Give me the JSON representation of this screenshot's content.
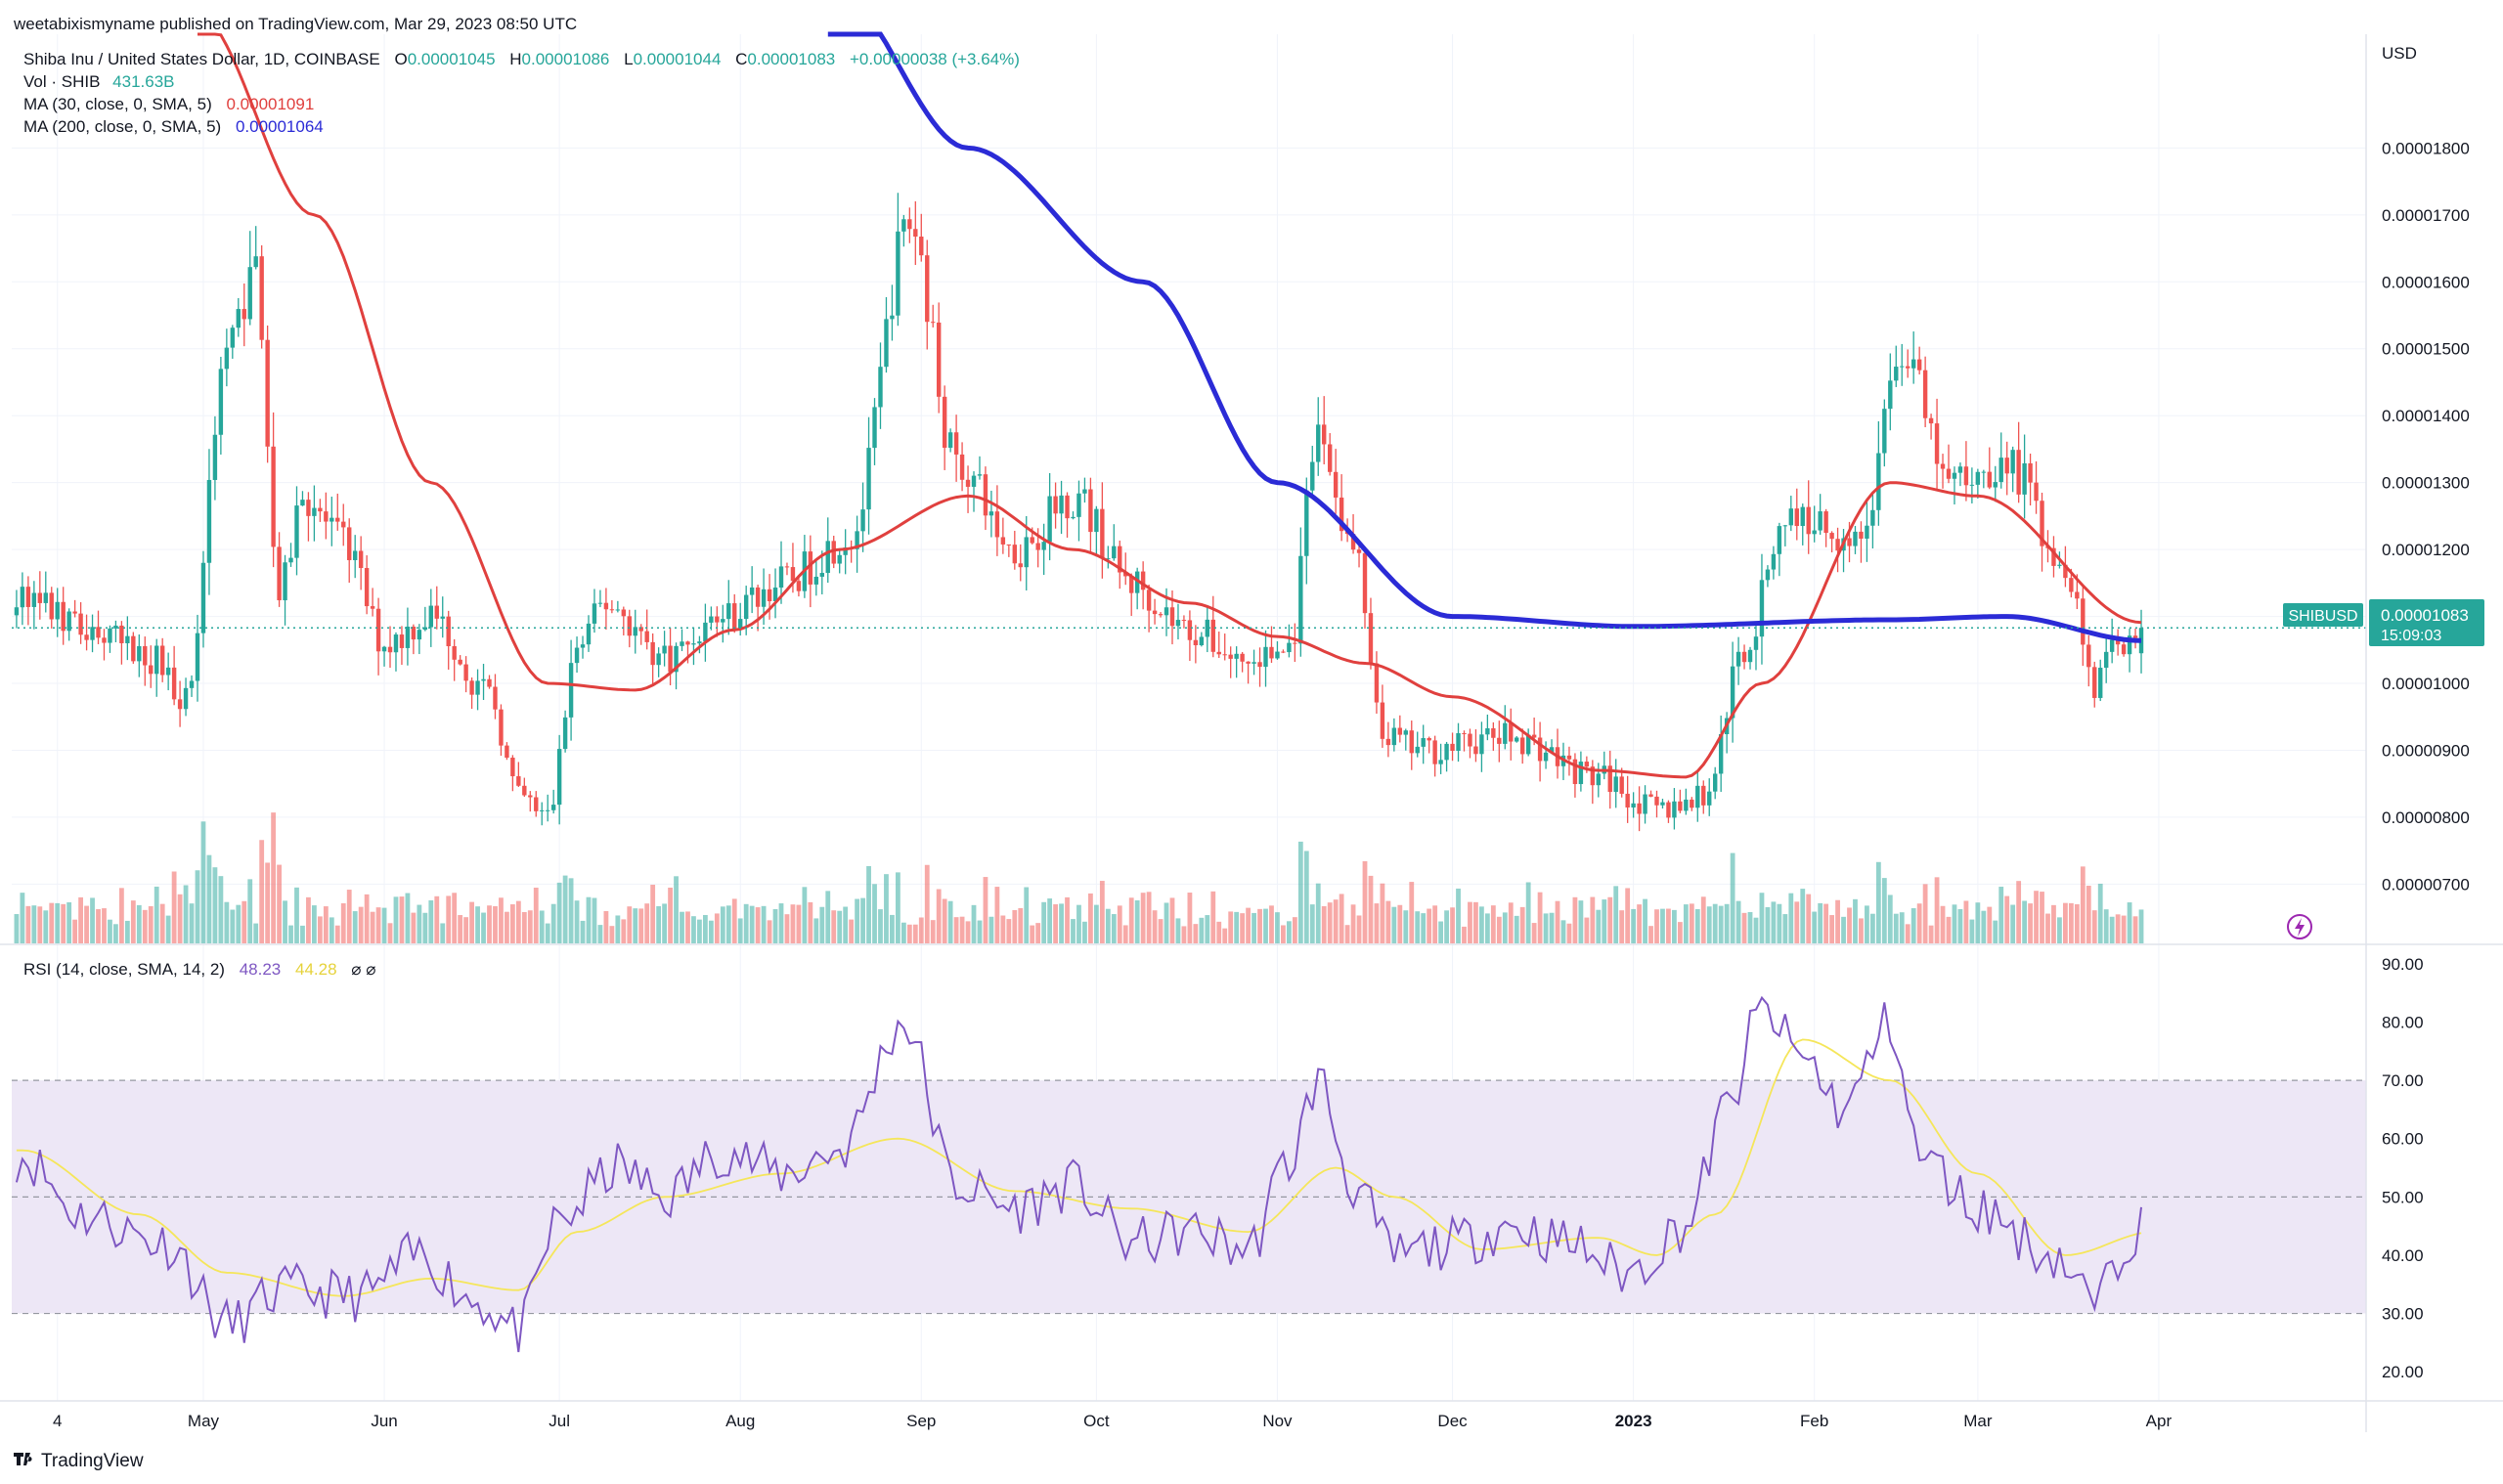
{
  "header": {
    "published": "weetabixismyname published on TradingView.com, Mar 29, 2023 08:50 UTC"
  },
  "legend": {
    "symbol": "Shiba Inu / United States Dollar, 1D, COINBASE",
    "o_label": "O",
    "o_value": "0.00001045",
    "h_label": "H",
    "h_value": "0.00001086",
    "l_label": "L",
    "l_value": "0.00001044",
    "c_label": "C",
    "c_value": "0.00001083",
    "change": "+0.00000038 (+3.64%)",
    "vol_label": "Vol · SHIB",
    "vol_value": "431.63B",
    "ma30_label": "MA (30, close, 0, SMA, 5)",
    "ma30_value": "0.00001091",
    "ma200_label": "MA (200, close, 0, SMA, 5)",
    "ma200_value": "0.00001064",
    "rsi_label": "RSI (14, close, SMA, 14, 2)",
    "rsi_value": "48.23",
    "rsi_ma_value": "44.28",
    "rsi_extra": "⌀ ⌀"
  },
  "price_badge": {
    "symbol": "SHIBUSD",
    "price": "0.00001083",
    "countdown": "15:09:03"
  },
  "footer": {
    "brand": "TradingView"
  },
  "colors": {
    "up": "#26a69a",
    "down": "#ef5350",
    "ma30": "#e0403e",
    "ma200": "#2b2bd6",
    "rsi": "#7e57c2",
    "rsi_ma": "#f5e65a",
    "rsi_band": "#ede7f6",
    "grid": "#f0f3fa"
  },
  "chart_data": {
    "type": "candlestick",
    "price_axis": {
      "unit": "USD",
      "ticks": [
        "0.00001800",
        "0.00001700",
        "0.00001600",
        "0.00001500",
        "0.00001400",
        "0.00001300",
        "0.00001200",
        "0.00001100",
        "0.00001000",
        "0.00000900",
        "0.00000800",
        "0.00000700"
      ],
      "range": [
        6.1e-06,
        1.97e-05
      ]
    },
    "time_axis": {
      "ticks": [
        "4",
        "May",
        "Jun",
        "Jul",
        "Aug",
        "Sep",
        "Oct",
        "Nov",
        "Dec",
        "2023",
        "Feb",
        "Mar",
        "Apr"
      ],
      "tick_days": [
        -24,
        1,
        32,
        62,
        93,
        124,
        154,
        185,
        215,
        246,
        277,
        305,
        336
      ]
    },
    "rsi_axis": {
      "ticks": [
        "90.00",
        "80.00",
        "70.00",
        "60.00",
        "50.00",
        "40.00",
        "30.00",
        "20.00"
      ],
      "range": [
        15,
        93
      ],
      "band": [
        30,
        70
      ],
      "mid": 50
    },
    "ma200_anchors": [
      [
        108,
        2.05e-05
      ],
      [
        132,
        1.8e-05
      ],
      [
        162,
        1.6e-05
      ],
      [
        185,
        1.3e-05
      ],
      [
        215,
        1.1e-05
      ],
      [
        246,
        1.085e-05
      ],
      [
        290,
        1.095e-05
      ],
      [
        310,
        1.1e-05
      ],
      [
        333,
        1.064e-05
      ]
    ],
    "ma30_anchors": [
      [
        0,
        2e-05
      ],
      [
        20,
        1.7e-05
      ],
      [
        40,
        1.3e-05
      ],
      [
        60,
        1e-05
      ],
      [
        75,
        9.9e-06
      ],
      [
        92,
        1.08e-05
      ],
      [
        110,
        1.2e-05
      ],
      [
        132,
        1.28e-05
      ],
      [
        150,
        1.2e-05
      ],
      [
        170,
        1.12e-05
      ],
      [
        185,
        1.07e-05
      ],
      [
        200,
        1.03e-05
      ],
      [
        215,
        9.8e-06
      ],
      [
        240,
        8.7e-06
      ],
      [
        255,
        8.6e-06
      ],
      [
        268,
        1e-05
      ],
      [
        290,
        1.3e-05
      ],
      [
        305,
        1.28e-05
      ],
      [
        333,
        1.091e-05
      ]
    ],
    "close_anchors": [
      [
        -30,
        1.13e-05
      ],
      [
        -20,
        1.08e-05
      ],
      [
        -8,
        1.04e-05
      ],
      [
        -2,
        9.8e-06
      ],
      [
        5,
        1.5e-05
      ],
      [
        10,
        1.62e-05
      ],
      [
        14,
        1.13e-05
      ],
      [
        18,
        1.28e-05
      ],
      [
        25,
        1.21e-05
      ],
      [
        32,
        1.06e-05
      ],
      [
        40,
        1.1e-05
      ],
      [
        50,
        9.8e-06
      ],
      [
        55,
        8.3e-06
      ],
      [
        60,
        8e-06
      ],
      [
        65,
        1.05e-05
      ],
      [
        70,
        1.12e-05
      ],
      [
        80,
        1.04e-05
      ],
      [
        90,
        1.1e-05
      ],
      [
        100,
        1.15e-05
      ],
      [
        112,
        1.22e-05
      ],
      [
        122,
        1.69e-05
      ],
      [
        130,
        1.33e-05
      ],
      [
        140,
        1.2e-05
      ],
      [
        150,
        1.28e-05
      ],
      [
        160,
        1.15e-05
      ],
      [
        170,
        1.08e-05
      ],
      [
        180,
        1.03e-05
      ],
      [
        187,
        1.05e-05
      ],
      [
        192,
        1.37e-05
      ],
      [
        198,
        1.2e-05
      ],
      [
        203,
        9.2e-06
      ],
      [
        210,
        9e-06
      ],
      [
        225,
        9.2e-06
      ],
      [
        240,
        8.6e-06
      ],
      [
        250,
        8.1e-06
      ],
      [
        258,
        8.3e-06
      ],
      [
        265,
        1.05e-05
      ],
      [
        272,
        1.25e-05
      ],
      [
        285,
        1.22e-05
      ],
      [
        292,
        1.5e-05
      ],
      [
        300,
        1.3e-05
      ],
      [
        310,
        1.33e-05
      ],
      [
        320,
        1.18e-05
      ],
      [
        325,
        1e-05
      ],
      [
        330,
        1.07e-05
      ],
      [
        333,
        1.083e-05
      ]
    ],
    "rsi_anchors": [
      [
        -30,
        57
      ],
      [
        -20,
        47
      ],
      [
        -5,
        42
      ],
      [
        5,
        28
      ],
      [
        15,
        34
      ],
      [
        28,
        33
      ],
      [
        38,
        40
      ],
      [
        48,
        32
      ],
      [
        55,
        27
      ],
      [
        62,
        46
      ],
      [
        72,
        55
      ],
      [
        80,
        50
      ],
      [
        90,
        58
      ],
      [
        100,
        54
      ],
      [
        110,
        58
      ],
      [
        121,
        80
      ],
      [
        130,
        52
      ],
      [
        140,
        48
      ],
      [
        150,
        52
      ],
      [
        160,
        42
      ],
      [
        170,
        44
      ],
      [
        180,
        41
      ],
      [
        187,
        56
      ],
      [
        192,
        70
      ],
      [
        198,
        52
      ],
      [
        205,
        40
      ],
      [
        215,
        42
      ],
      [
        225,
        45
      ],
      [
        235,
        42
      ],
      [
        245,
        37
      ],
      [
        255,
        45
      ],
      [
        262,
        65
      ],
      [
        268,
        82
      ],
      [
        275,
        74
      ],
      [
        282,
        65
      ],
      [
        290,
        80
      ],
      [
        295,
        57
      ],
      [
        305,
        48
      ],
      [
        318,
        40
      ],
      [
        325,
        32
      ],
      [
        332,
        44
      ],
      [
        335,
        48
      ]
    ],
    "rsi_ma_anchors": [
      [
        -30,
        58
      ],
      [
        -10,
        47
      ],
      [
        5,
        37
      ],
      [
        25,
        33
      ],
      [
        40,
        36
      ],
      [
        55,
        34
      ],
      [
        65,
        44
      ],
      [
        80,
        50
      ],
      [
        100,
        54
      ],
      [
        120,
        60
      ],
      [
        140,
        51
      ],
      [
        160,
        48
      ],
      [
        180,
        44
      ],
      [
        195,
        55
      ],
      [
        205,
        50
      ],
      [
        220,
        41
      ],
      [
        240,
        43
      ],
      [
        250,
        40
      ],
      [
        260,
        47
      ],
      [
        275,
        77
      ],
      [
        290,
        70
      ],
      [
        305,
        54
      ],
      [
        320,
        40
      ],
      [
        335,
        44
      ]
    ]
  }
}
